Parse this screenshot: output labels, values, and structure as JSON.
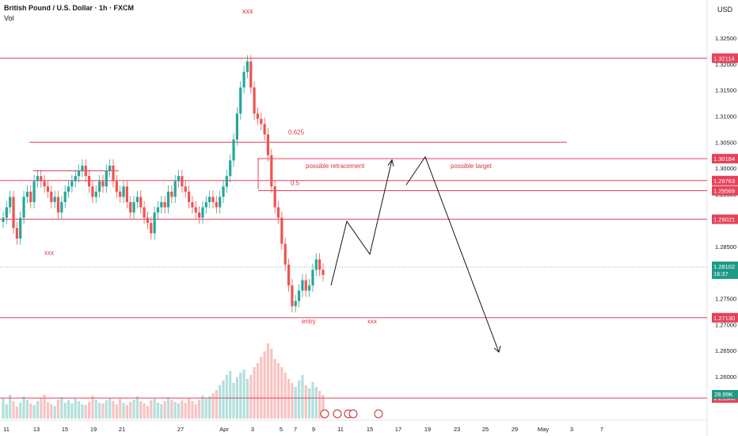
{
  "header": {
    "symbol_title": "British Pound / U.S. Dollar · 1h · FXCM",
    "indicator": "Vol",
    "currency": "USD",
    "note_top": "xxx"
  },
  "colors": {
    "up": "#26a69a",
    "down": "#ef5350",
    "level_line": "#e5425a",
    "annotation": "#e0303c",
    "axis_text": "#131722",
    "current_price_bg": "#1e9b84",
    "arrow": "#131722"
  },
  "chart_data": {
    "type": "candlestick",
    "title": "British Pound / U.S. Dollar · 1h · FXCM",
    "price_axis": {
      "ticks": [
        "1.32500",
        "1.32000",
        "1.31500",
        "1.31000",
        "1.30500",
        "1.30000",
        "1.29500",
        "1.29000",
        "1.28500",
        "1.27500",
        "1.27000",
        "1.26500",
        "1.26000"
      ],
      "ylim": [
        1.2563,
        1.3285
      ]
    },
    "time_axis": {
      "ticks": [
        "11",
        "13",
        "15",
        "17",
        "19",
        "21",
        "23",
        "25",
        "27",
        "Apr",
        "3",
        "5",
        "7",
        "9",
        "11",
        "15",
        "17",
        "19",
        "23",
        "25",
        "29",
        "May",
        "3",
        "7"
      ]
    },
    "horizontal_levels": [
      {
        "price": 1.32114,
        "label": "1.32114",
        "xstart": "left"
      },
      {
        "price": 1.305,
        "label": "",
        "xstart": "mid-left"
      },
      {
        "price": 1.30184,
        "label": "1.30184",
        "xstart": "mid"
      },
      {
        "price": 1.29763,
        "label": "1.29763",
        "xstart": "left"
      },
      {
        "price": 1.29569,
        "label": "1.29569",
        "xstart": "mid"
      },
      {
        "price": 1.29021,
        "label": "1.29021",
        "xstart": "left"
      },
      {
        "price": 1.2713,
        "label": "1.27130",
        "xstart": "left"
      },
      {
        "price": 1.25588,
        "label": "1.25588",
        "xstart": "left"
      }
    ],
    "current_price": {
      "label": "1.28102",
      "countdown": "16:37",
      "price": 1.28102
    },
    "volume_label": "28.99K",
    "annotations": [
      {
        "text": "0.625",
        "price": 1.3065
      },
      {
        "text": "0.5",
        "price": 1.2968
      },
      {
        "text": "possible retracement",
        "price": 1.3
      },
      {
        "text": "possible target",
        "price": 1.3
      },
      {
        "text": "entry",
        "price": 1.2702
      },
      {
        "text": "xxx",
        "price": 1.2702
      },
      {
        "text": "xxx",
        "price": 1.2834
      }
    ],
    "projection_path": [
      1.2775,
      1.2898,
      1.2835,
      1.3016
    ],
    "projection_path_2": [
      1.2968,
      1.3022,
      1.2647
    ],
    "candle_closes": [
      1.2905,
      1.2925,
      1.2945,
      1.2885,
      1.2865,
      1.2905,
      1.2945,
      1.2955,
      1.2935,
      1.2975,
      1.2985,
      1.2975,
      1.2965,
      1.2955,
      1.2935,
      1.2945,
      1.2915,
      1.2935,
      1.2955,
      1.2965,
      1.2975,
      1.2985,
      1.2995,
      1.3005,
      1.2985,
      1.2965,
      1.2945,
      1.2955,
      1.2975,
      1.2965,
      1.2995,
      1.3005,
      1.2975,
      1.2955,
      1.2945,
      1.2965,
      1.2935,
      1.2915,
      1.2935,
      1.2945,
      1.2925,
      1.2905,
      1.2895,
      1.2875,
      1.2915,
      1.2925,
      1.2935,
      1.2925,
      1.2955,
      1.2945,
      1.2975,
      1.2985,
      1.2965,
      1.2955,
      1.2935,
      1.2925,
      1.2915,
      1.2905,
      1.2925,
      1.2935,
      1.2945,
      1.2935,
      1.2925,
      1.2945,
      1.2965,
      1.2985,
      1.3015,
      1.3055,
      1.3105,
      1.3155,
      1.3185,
      1.3205,
      1.3155,
      1.3105,
      1.3095,
      1.3085,
      1.3065,
      1.3025,
      1.2965,
      1.2925,
      1.2905,
      1.2855,
      1.2815,
      1.2775,
      1.2735,
      1.2745,
      1.2765,
      1.2785,
      1.2765,
      1.2775,
      1.2805,
      1.2825,
      1.2805,
      1.2795
    ],
    "volume_values": [
      25,
      18,
      30,
      22,
      15,
      20,
      28,
      24,
      19,
      17,
      22,
      26,
      30,
      21,
      18,
      16,
      24,
      27,
      20,
      23,
      19,
      25,
      22,
      18,
      17,
      21,
      29,
      24,
      20,
      19,
      23,
      26,
      22,
      18,
      25,
      20,
      17,
      21,
      24,
      28,
      22,
      19,
      16,
      23,
      25,
      20,
      18,
      22,
      27,
      24,
      21,
      19,
      23,
      20,
      26,
      22,
      18,
      24,
      29,
      25,
      28,
      32,
      36,
      42,
      48,
      55,
      60,
      45,
      52,
      58,
      62,
      50,
      55,
      65,
      70,
      78,
      85,
      95,
      88,
      75,
      70,
      65,
      58,
      50,
      45,
      40,
      48,
      55,
      42,
      38,
      46,
      40,
      35,
      30
    ]
  }
}
